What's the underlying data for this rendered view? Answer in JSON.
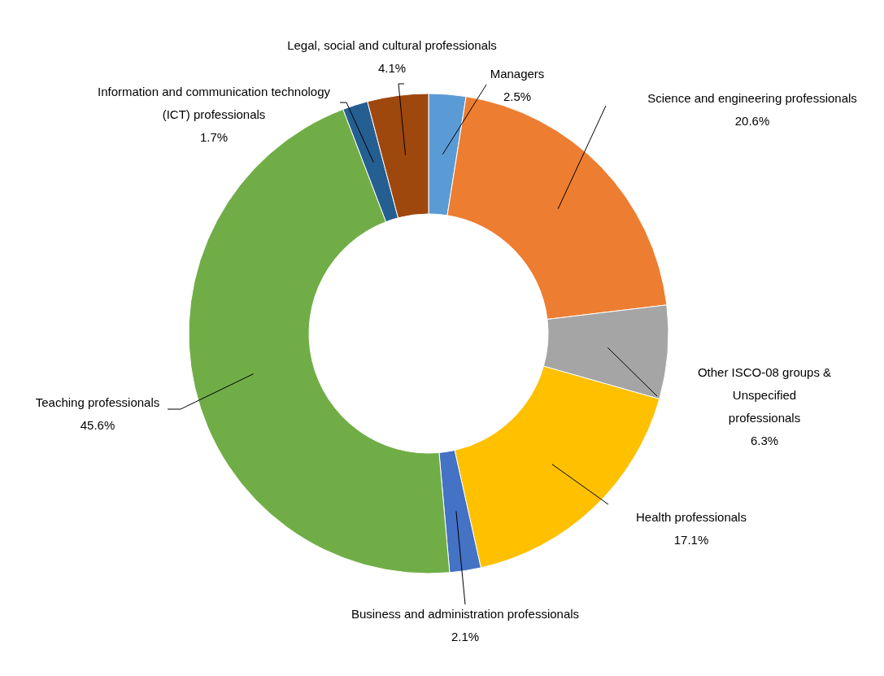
{
  "chart_data": {
    "type": "donut",
    "categories": [
      "Managers",
      "Science and engineering professionals",
      "Other ISCO-08 groups & Unspecified professionals",
      "Health professionals",
      "Business and administration professionals",
      "Teaching professionals",
      "Information and communication technology (ICT) professionals",
      "Legal, social and cultural professionals"
    ],
    "values": [
      2.5,
      20.6,
      6.3,
      17.1,
      2.1,
      45.6,
      1.7,
      4.1
    ],
    "value_labels": [
      "2.5%",
      "20.6%",
      "6.3%",
      "17.1%",
      "2.1%",
      "45.6%",
      "1.7%",
      "4.1%"
    ],
    "colors": [
      "#5b9bd5",
      "#ed7d31",
      "#a5a5a5",
      "#ffc000",
      "#4472c4",
      "#70ad47",
      "#255e91",
      "#9e480e"
    ]
  }
}
